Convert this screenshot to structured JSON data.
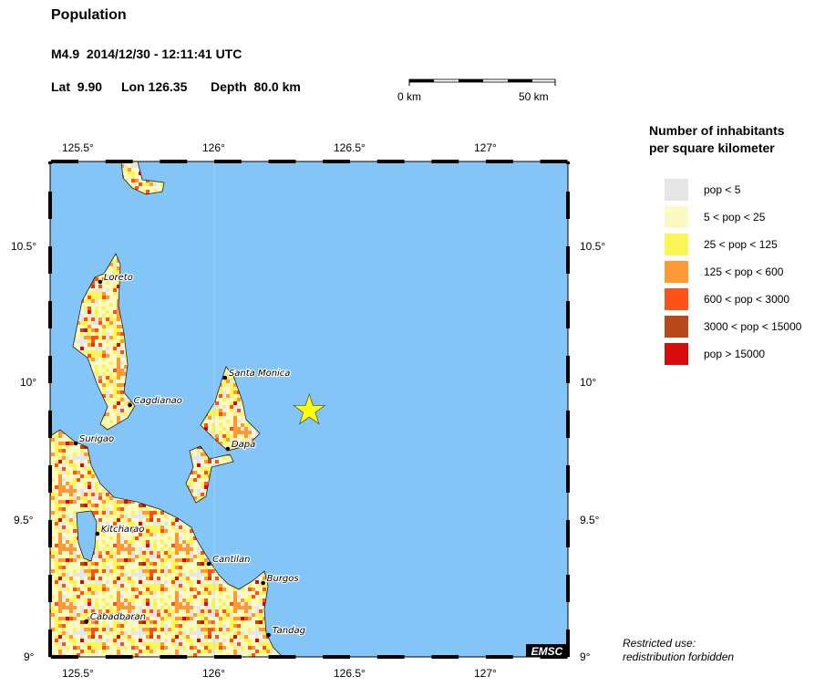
{
  "header": {
    "title": "Population",
    "event": "M4.9  2014/12/30 - 12:11:41 UTC",
    "lat_label": "Lat  9.90",
    "lon_label": "Lon 126.35",
    "depth_label": "Depth  80.0 km"
  },
  "scale_bar": {
    "start_label": "0 km",
    "end_label": "50 km"
  },
  "axes": {
    "lon_ticks": [
      "125.5°",
      "126°",
      "126.5°",
      "127°"
    ],
    "lat_ticks": [
      "10.5°",
      "10°",
      "9.5°",
      "9°"
    ]
  },
  "epicenter": {
    "lat": 9.9,
    "lon": 126.35,
    "marker_color": "#ffff00"
  },
  "cities": [
    "Loreto",
    "Cagdianao",
    "Surigao",
    "Santa Monica",
    "Dapa",
    "Kitcharao",
    "Cantilan",
    "Burgos",
    "Cabadbaran",
    "Tandag"
  ],
  "legend": {
    "title_line1": "Number of inhabitants",
    "title_line2": "per square kilometer",
    "items": [
      {
        "label": "pop < 5",
        "color": "#e6e6e6"
      },
      {
        "label": "5 < pop < 25",
        "color": "#fbfac4"
      },
      {
        "label": "25 < pop < 125",
        "color": "#fbf557"
      },
      {
        "label": "125 < pop < 600",
        "color": "#fd9a36"
      },
      {
        "label": "600 < pop < 3000",
        "color": "#fd521a"
      },
      {
        "label": "3000 < pop < 15000",
        "color": "#b9481a"
      },
      {
        "label": "pop > 15000",
        "color": "#d60b0b"
      }
    ]
  },
  "colors": {
    "sea": "#84c5f7"
  },
  "logo": "EMSC",
  "footer": {
    "line1": "Restricted use:",
    "line2": "redistribution forbidden"
  }
}
